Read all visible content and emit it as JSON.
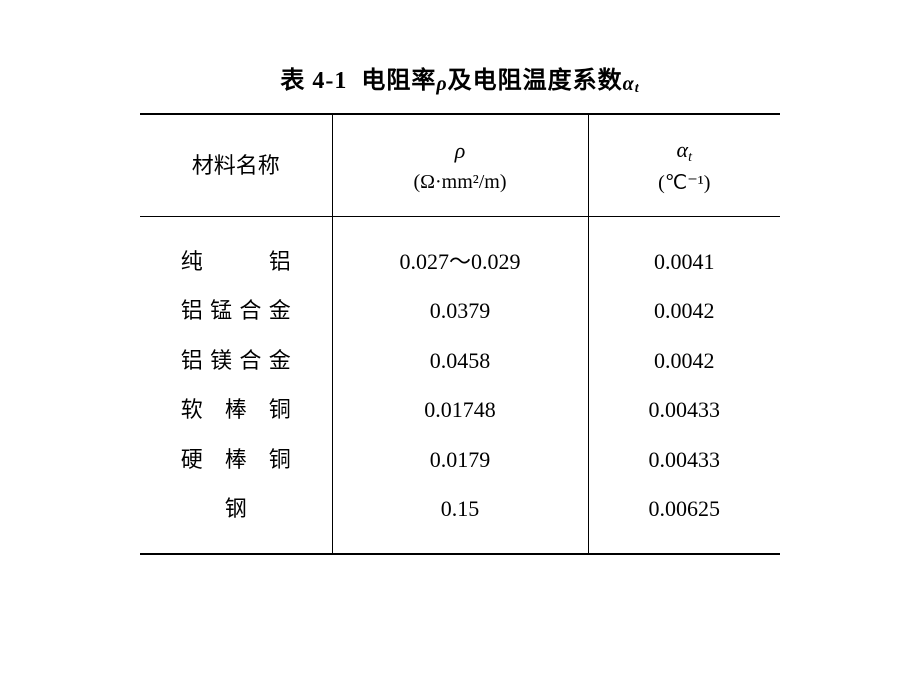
{
  "table": {
    "caption_prefix": "表 4-1",
    "caption_main": "电阻率",
    "caption_sym1": "ρ",
    "caption_mid": "及电阻温度系数",
    "caption_sym2": "α",
    "caption_sub": "t",
    "headers": {
      "col1": "材料名称",
      "col2_sym": "ρ",
      "col2_unit": "(Ω·mm²/m)",
      "col3_sym": "α",
      "col3_sub": "t",
      "col3_unit": "(℃⁻¹)"
    },
    "rows": [
      {
        "material": "纯铝",
        "rho": "0.027～0.029",
        "alpha": "0.0041",
        "justify": true
      },
      {
        "material": "铝锰合金",
        "rho": "0.0379",
        "alpha": "0.0042",
        "justify": true
      },
      {
        "material": "铝镁合金",
        "rho": "0.0458",
        "alpha": "0.0042",
        "justify": true
      },
      {
        "material": "软棒铜",
        "rho": "0.01748",
        "alpha": "0.00433",
        "justify": true
      },
      {
        "material": "硬棒铜",
        "rho": "0.0179",
        "alpha": "0.00433",
        "justify": true
      },
      {
        "material": "钢",
        "rho": "0.15",
        "alpha": "0.00625",
        "justify": false
      }
    ]
  }
}
